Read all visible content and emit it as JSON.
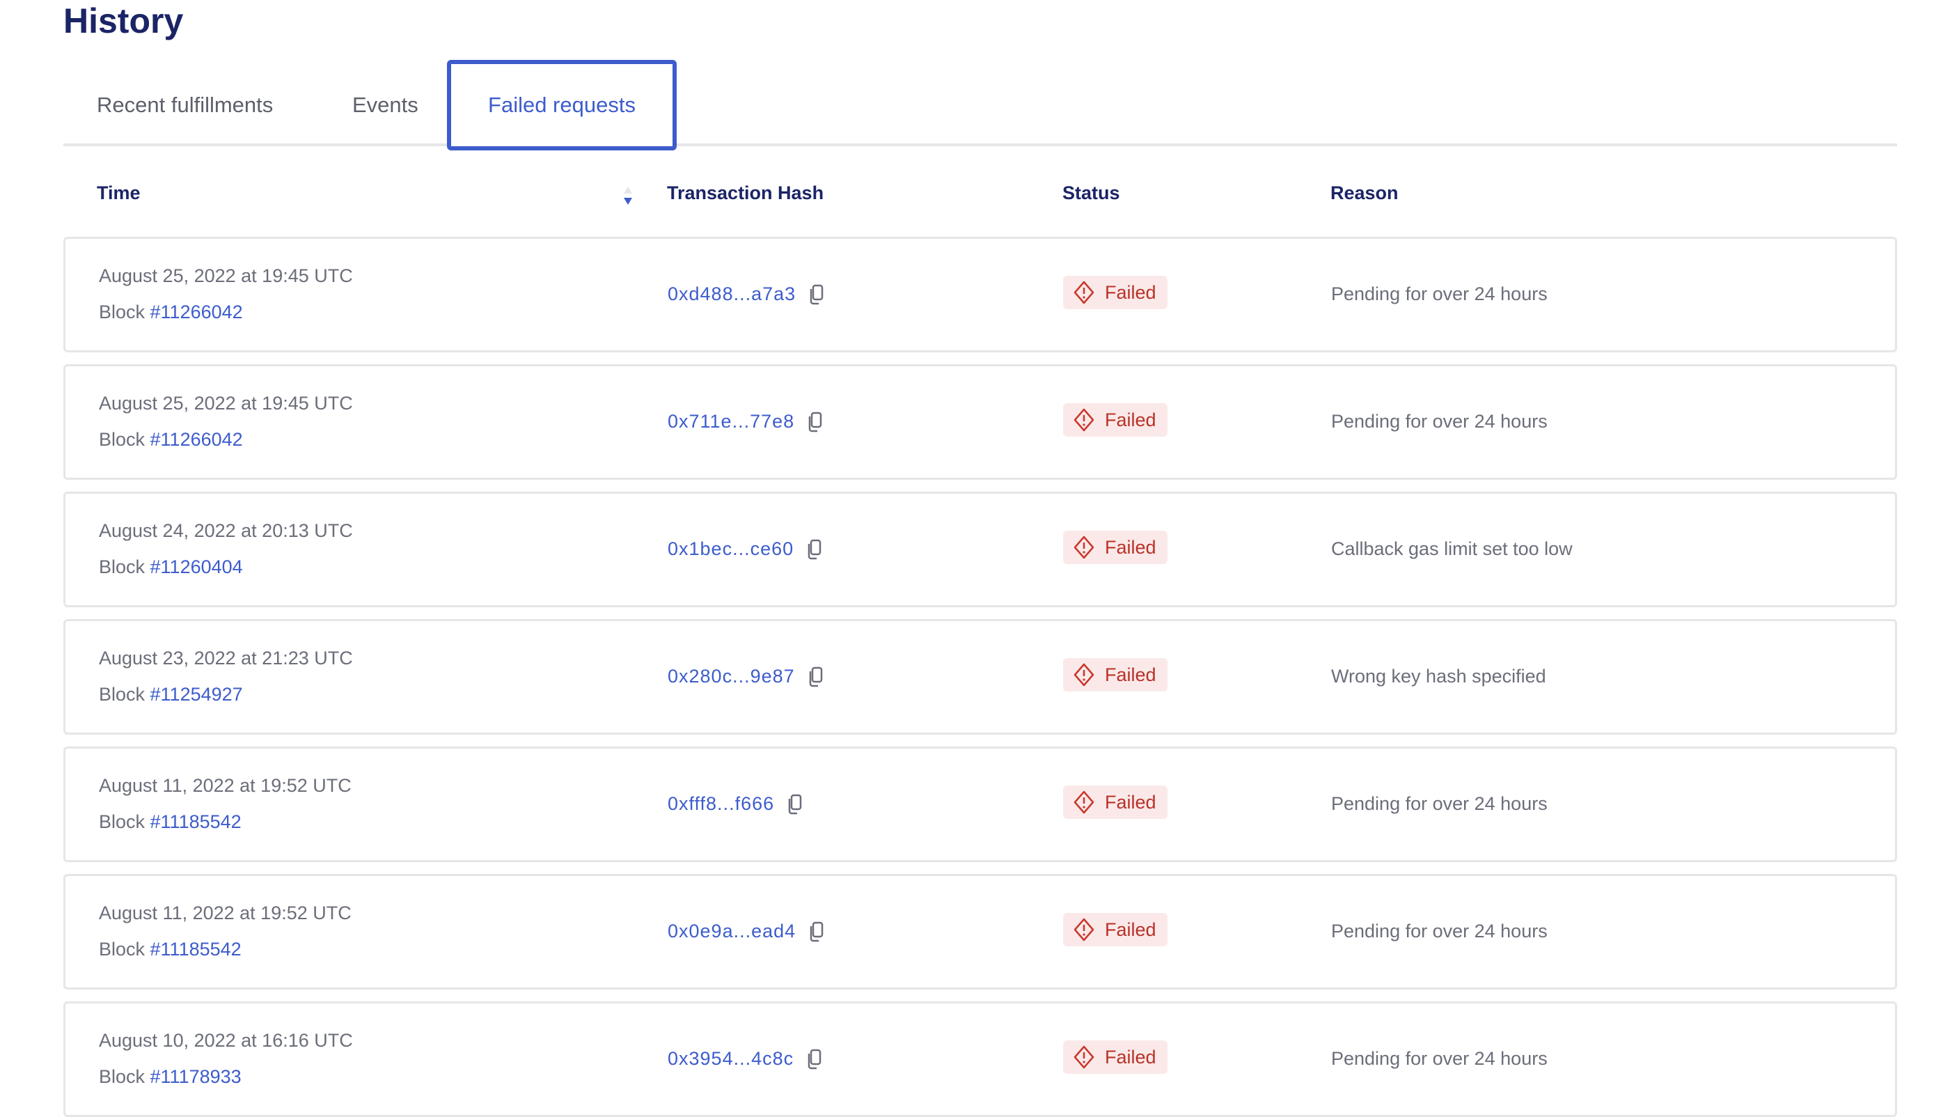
{
  "title": "History",
  "tabs": [
    {
      "label": "Recent fulfillments"
    },
    {
      "label": "Events"
    },
    {
      "label": "Failed requests",
      "active": true
    }
  ],
  "columns": {
    "time": "Time",
    "hash": "Transaction Hash",
    "status": "Status",
    "reason": "Reason"
  },
  "sort": {
    "column": "Time",
    "direction": "descending"
  },
  "colors": {
    "accent": "#3d5ccc",
    "title": "#1b2466",
    "failed_text": "#b83228",
    "failed_bg": "#fbe9e9"
  },
  "block_prefix": "Block ",
  "rows": [
    {
      "date": "August 25, 2022 at 19:45 UTC",
      "block": "#11266042",
      "hash": "0xd488...a7a3",
      "status": "Failed",
      "reason": "Pending for over 24 hours"
    },
    {
      "date": "August 25, 2022 at 19:45 UTC",
      "block": "#11266042",
      "hash": "0x711e...77e8",
      "status": "Failed",
      "reason": "Pending for over 24 hours"
    },
    {
      "date": "August 24, 2022 at 20:13 UTC",
      "block": "#11260404",
      "hash": "0x1bec...ce60",
      "status": "Failed",
      "reason": "Callback gas limit set too low"
    },
    {
      "date": "August 23, 2022 at 21:23 UTC",
      "block": "#11254927",
      "hash": "0x280c...9e87",
      "status": "Failed",
      "reason": "Wrong key hash specified"
    },
    {
      "date": "August 11, 2022 at 19:52 UTC",
      "block": "#11185542",
      "hash": "0xfff8...f666",
      "status": "Failed",
      "reason": "Pending for over 24 hours"
    },
    {
      "date": "August 11, 2022 at 19:52 UTC",
      "block": "#11185542",
      "hash": "0x0e9a...ead4",
      "status": "Failed",
      "reason": "Pending for over 24 hours"
    },
    {
      "date": "August 10, 2022 at 16:16 UTC",
      "block": "#11178933",
      "hash": "0x3954...4c8c",
      "status": "Failed",
      "reason": "Pending for over 24 hours"
    }
  ]
}
